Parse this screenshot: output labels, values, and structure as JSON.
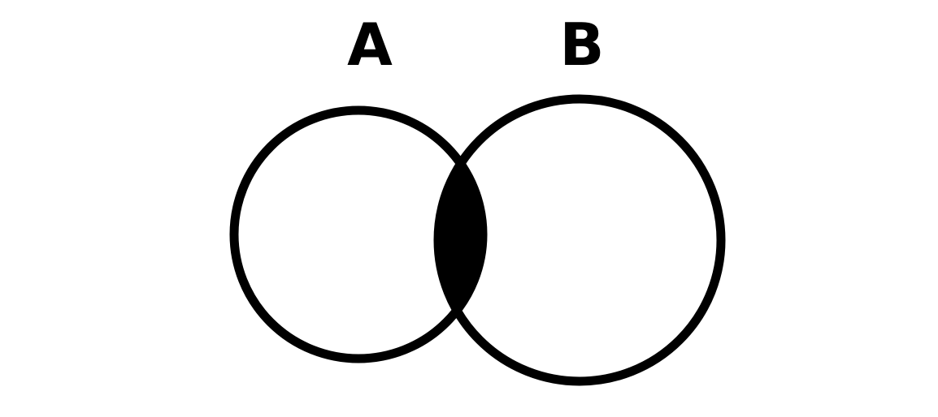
{
  "diagram": {
    "type": "venn",
    "sets": [
      {
        "label": "A"
      },
      {
        "label": "B"
      }
    ],
    "highlighted_region": "A ∩ B",
    "colors": {
      "background": "#ffffff",
      "stroke": "#000000",
      "intersection_fill": "#000000"
    }
  }
}
